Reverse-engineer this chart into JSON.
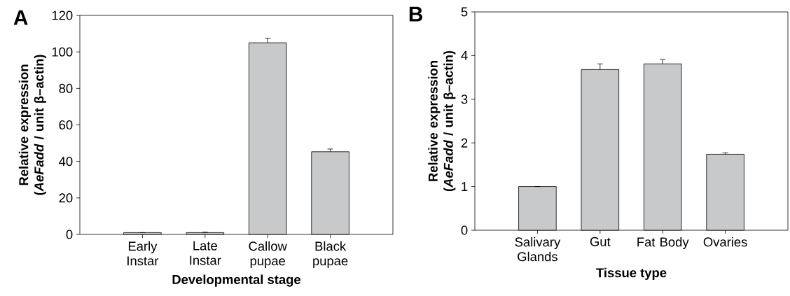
{
  "chart_data": [
    {
      "type": "bar",
      "annotations": [
        "A"
      ],
      "xlabel": "Developmental stage",
      "ylabel": "Relative expression (*AeFadd* / unit β–actin)",
      "categories": [
        "Early Instar",
        "Late Instar",
        "Callow pupae",
        "Black pupae"
      ],
      "values": [
        1,
        1,
        105,
        45.3
      ],
      "errors": [
        null,
        0.2,
        2.5,
        1.5
      ],
      "color": "#c8c9cb",
      "ylim": [
        0,
        120
      ],
      "yticks": [
        0,
        20,
        40,
        60,
        80,
        100,
        120
      ]
    },
    {
      "type": "bar",
      "annotations": [
        "B"
      ],
      "xlabel": "Tissue type",
      "ylabel": "Relative expression (*AeFadd* / unit β–actin)",
      "categories": [
        "Salivary Glands",
        "Gut",
        "Fat Body",
        "Ovaries"
      ],
      "values": [
        1,
        3.68,
        3.81,
        1.74
      ],
      "errors": [
        null,
        0.13,
        0.1,
        0.03
      ],
      "color": "#c8c9cb",
      "ylim": [
        0,
        5
      ],
      "yticks": [
        0,
        1,
        2,
        3,
        4,
        5
      ]
    }
  ]
}
